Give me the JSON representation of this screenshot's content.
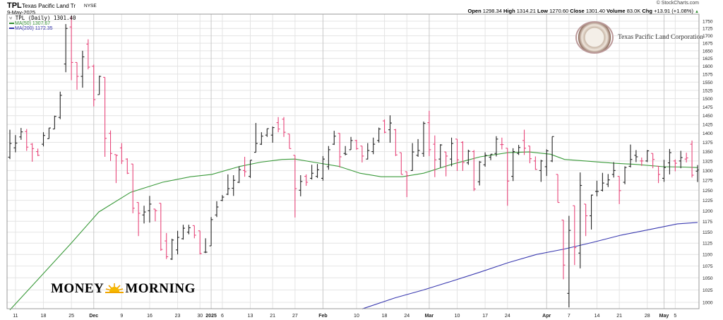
{
  "header": {
    "symbol": "TPL",
    "company": "Texas Pacific Land Tr",
    "exchange": "NYSE",
    "date": "9-May-2025",
    "copyright": "© StockCharts.com",
    "open_label": "Open",
    "open": "1298.34",
    "high_label": "High",
    "high": "1314.21",
    "low_label": "Low",
    "low": "1270.60",
    "close_label": "Close",
    "close": "1301.40",
    "volume_label": "Volume",
    "volume": "83.0K",
    "chg_label": "Chg",
    "chg": "+13.91 (+1.08%)",
    "chg_arrow": "▲"
  },
  "legend": {
    "price": "TPL (Daily) 1301.40",
    "ma50": "MA(50) 1307.67",
    "ma200": "MA(200) 1172.35"
  },
  "logos": {
    "company_logo_text": "Texas Pacific Land Corporation",
    "money_left": "MONEY",
    "money_right": "MORNING"
  },
  "colors": {
    "up": "#222222",
    "down": "#e8467a",
    "ma50": "#3a9a3a",
    "ma200": "#3a3ab0",
    "grid": "#e4e4e4"
  },
  "chart_data": {
    "type": "ohlc",
    "yscale": "log",
    "ylim": [
      987,
      1775
    ],
    "grid": true,
    "yticks": [
      1000,
      1025,
      1050,
      1075,
      1100,
      1125,
      1150,
      1175,
      1200,
      1225,
      1250,
      1275,
      1300,
      1325,
      1350,
      1375,
      1400,
      1425,
      1450,
      1475,
      1500,
      1525,
      1550,
      1575,
      1600,
      1625,
      1650,
      1675,
      1700,
      1725,
      1750
    ],
    "xticks": [
      {
        "label": "11",
        "bar": 1
      },
      {
        "label": "18",
        "bar": 6
      },
      {
        "label": "25",
        "bar": 11
      },
      {
        "label": "Dec",
        "bar": 15,
        "major": true
      },
      {
        "label": "9",
        "bar": 20
      },
      {
        "label": "16",
        "bar": 25
      },
      {
        "label": "23",
        "bar": 30
      },
      {
        "label": "30",
        "bar": 34
      },
      {
        "label": "2025",
        "bar": 36,
        "major": true
      },
      {
        "label": "6",
        "bar": 38
      },
      {
        "label": "13",
        "bar": 43
      },
      {
        "label": "21",
        "bar": 47
      },
      {
        "label": "27",
        "bar": 51
      },
      {
        "label": "Feb",
        "bar": 56,
        "major": true
      },
      {
        "label": "10",
        "bar": 62
      },
      {
        "label": "18",
        "bar": 67
      },
      {
        "label": "24",
        "bar": 71
      },
      {
        "label": "Mar",
        "bar": 75,
        "major": true
      },
      {
        "label": "10",
        "bar": 80
      },
      {
        "label": "17",
        "bar": 85
      },
      {
        "label": "24",
        "bar": 89
      },
      {
        "label": "Apr",
        "bar": 96,
        "major": true
      },
      {
        "label": "7",
        "bar": 100
      },
      {
        "label": "14",
        "bar": 105
      },
      {
        "label": "21",
        "bar": 109
      },
      {
        "label": "28",
        "bar": 114
      },
      {
        "label": "May",
        "bar": 117,
        "major": true
      },
      {
        "label": "5",
        "bar": 119
      }
    ],
    "ohlc_fields": [
      "open",
      "high",
      "low",
      "close"
    ],
    "bars": [
      [
        1335,
        1410,
        1330,
        1372
      ],
      [
        1360,
        1395,
        1348,
        1373
      ],
      [
        1390,
        1415,
        1382,
        1404
      ],
      [
        1405,
        1412,
        1352,
        1362
      ],
      [
        1370,
        1373,
        1323,
        1358
      ],
      [
        1350,
        1358,
        1338,
        1340
      ],
      [
        1370,
        1403,
        1364,
        1394
      ],
      [
        1385,
        1415,
        1385,
        1415
      ],
      [
        1412,
        1450,
        1412,
        1448
      ],
      [
        1445,
        1521,
        1440,
        1510
      ],
      [
        1607,
        1740,
        1581,
        1725
      ],
      [
        1730,
        1767,
        1556,
        1612
      ],
      [
        1612,
        1612,
        1527,
        1568
      ],
      [
        1568,
        1650,
        1533,
        1630
      ],
      [
        1672,
        1688,
        1590,
        1597
      ],
      [
        1600,
        1605,
        1477,
        1497
      ],
      [
        1512,
        1570,
        1512,
        1568
      ],
      [
        1565,
        1565,
        1336,
        1386
      ],
      [
        1400,
        1408,
        1325,
        1345
      ],
      [
        1342,
        1342,
        1268,
        1340
      ],
      [
        1360,
        1373,
        1317,
        1325
      ],
      [
        1330,
        1332,
        1291,
        1293
      ],
      [
        1317,
        1317,
        1194,
        1206
      ],
      [
        1220,
        1220,
        1141,
        1194
      ],
      [
        1190,
        1212,
        1170,
        1197
      ],
      [
        1200,
        1236,
        1172,
        1216
      ],
      [
        1204,
        1204,
        1175,
        1200
      ],
      [
        1218,
        1218,
        1108,
        1111
      ],
      [
        1130,
        1148,
        1090,
        1095
      ],
      [
        1090,
        1135,
        1088,
        1132
      ],
      [
        1110,
        1153,
        1100,
        1138
      ],
      [
        1135,
        1167,
        1133,
        1159
      ],
      [
        1150,
        1167,
        1145,
        1160
      ],
      [
        1165,
        1165,
        1136,
        1143
      ],
      [
        1153,
        1153,
        1100,
        1102
      ],
      [
        1105,
        1136,
        1103,
        1105
      ],
      [
        1119,
        1185,
        1119,
        1179
      ],
      [
        1190,
        1223,
        1185,
        1209
      ],
      [
        1225,
        1238,
        1223,
        1233
      ],
      [
        1240,
        1290,
        1238,
        1254
      ],
      [
        1255,
        1288,
        1236,
        1275
      ],
      [
        1270,
        1311,
        1268,
        1302
      ],
      [
        1300,
        1336,
        1284,
        1297
      ],
      [
        1285,
        1327,
        1281,
        1327
      ],
      [
        1348,
        1429,
        1348,
        1372
      ],
      [
        1370,
        1403,
        1368,
        1392
      ],
      [
        1395,
        1413,
        1390,
        1413
      ],
      [
        1395,
        1419,
        1374,
        1416
      ],
      [
        1430,
        1446,
        1403,
        1412
      ],
      [
        1440,
        1446,
        1390,
        1403
      ],
      [
        1398,
        1398,
        1358,
        1358
      ],
      [
        1340,
        1340,
        1184,
        1254
      ],
      [
        1250,
        1288,
        1235,
        1272
      ],
      [
        1285,
        1290,
        1261,
        1270
      ],
      [
        1280,
        1315,
        1277,
        1293
      ],
      [
        1285,
        1317,
        1281,
        1302
      ],
      [
        1280,
        1338,
        1274,
        1330
      ],
      [
        1310,
        1365,
        1302,
        1355
      ],
      [
        1370,
        1407,
        1368,
        1392
      ],
      [
        1400,
        1400,
        1308,
        1336
      ],
      [
        1345,
        1365,
        1340,
        1343
      ],
      [
        1355,
        1390,
        1355,
        1380
      ],
      [
        1380,
        1382,
        1355,
        1358
      ],
      [
        1365,
        1365,
        1321,
        1338
      ],
      [
        1330,
        1373,
        1329,
        1353
      ],
      [
        1350,
        1388,
        1343,
        1370
      ],
      [
        1380,
        1416,
        1374,
        1412
      ],
      [
        1435,
        1439,
        1400,
        1403
      ],
      [
        1410,
        1451,
        1374,
        1429
      ],
      [
        1410,
        1412,
        1338,
        1341
      ],
      [
        1347,
        1347,
        1290,
        1290
      ],
      [
        1297,
        1297,
        1233,
        1287
      ],
      [
        1300,
        1373,
        1299,
        1349
      ],
      [
        1340,
        1384,
        1336,
        1353
      ],
      [
        1345,
        1433,
        1336,
        1428
      ],
      [
        1430,
        1464,
        1338,
        1355
      ],
      [
        1370,
        1394,
        1283,
        1328
      ],
      [
        1330,
        1370,
        1308,
        1368
      ],
      [
        1349,
        1349,
        1285,
        1338
      ],
      [
        1330,
        1388,
        1311,
        1372
      ],
      [
        1384,
        1384,
        1299,
        1328
      ],
      [
        1375,
        1378,
        1299,
        1321
      ],
      [
        1320,
        1355,
        1315,
        1351
      ],
      [
        1350,
        1354,
        1248,
        1253
      ],
      [
        1271,
        1325,
        1262,
        1322
      ],
      [
        1315,
        1348,
        1310,
        1340
      ],
      [
        1335,
        1343,
        1327,
        1343
      ],
      [
        1345,
        1392,
        1337,
        1384
      ],
      [
        1369,
        1388,
        1356,
        1369
      ],
      [
        1359,
        1359,
        1212,
        1273
      ],
      [
        1285,
        1359,
        1273,
        1350
      ],
      [
        1345,
        1368,
        1341,
        1361
      ],
      [
        1380,
        1410,
        1341,
        1359
      ],
      [
        1365,
        1365,
        1319,
        1331
      ],
      [
        1325,
        1337,
        1302,
        1303
      ],
      [
        1300,
        1328,
        1271,
        1325
      ],
      [
        1310,
        1356,
        1286,
        1352
      ],
      [
        1325,
        1391,
        1322,
        1391
      ],
      [
        1290,
        1290,
        1220,
        1220
      ],
      [
        1178,
        1178,
        1047,
        1077
      ],
      [
        1018,
        1188,
        990,
        1154
      ],
      [
        1212,
        1212,
        1077,
        1115
      ],
      [
        1103,
        1295,
        1070,
        1262
      ],
      [
        1216,
        1216,
        1141,
        1188
      ],
      [
        1188,
        1239,
        1156,
        1238
      ],
      [
        1247,
        1274,
        1235,
        1247
      ],
      [
        1250,
        1294,
        1247,
        1268
      ],
      [
        1265,
        1291,
        1258,
        1276
      ],
      [
        1290,
        1322,
        1282,
        1300
      ],
      [
        1285,
        1285,
        1216,
        1249
      ],
      [
        1270,
        1311,
        1265,
        1308
      ],
      [
        1311,
        1369,
        1308,
        1329
      ],
      [
        1340,
        1354,
        1322,
        1336
      ],
      [
        1325,
        1334,
        1312,
        1325
      ],
      [
        1325,
        1354,
        1322,
        1352
      ],
      [
        1345,
        1345,
        1306,
        1329
      ],
      [
        1311,
        1311,
        1268,
        1290
      ],
      [
        1280,
        1328,
        1271,
        1308
      ],
      [
        1320,
        1357,
        1290,
        1347
      ],
      [
        1325,
        1329,
        1298,
        1319
      ],
      [
        1325,
        1352,
        1306,
        1334
      ],
      [
        1330,
        1347,
        1321,
        1333
      ],
      [
        1370,
        1380,
        1282,
        1288
      ],
      [
        1298.34,
        1314.21,
        1270.6,
        1301.4
      ]
    ],
    "series": [
      {
        "name": "MA(50)",
        "points": [
          [
            0,
            985
          ],
          [
            4.5,
            1040
          ],
          [
            10.9,
            1124
          ],
          [
            15.9,
            1197
          ],
          [
            21.6,
            1245
          ],
          [
            27.3,
            1270
          ],
          [
            32.3,
            1284
          ],
          [
            36.1,
            1290
          ],
          [
            41.2,
            1311
          ],
          [
            44.9,
            1322
          ],
          [
            48.7,
            1329
          ],
          [
            51,
            1330
          ],
          [
            55,
            1320
          ],
          [
            58.8,
            1311
          ],
          [
            62.6,
            1293
          ],
          [
            66.4,
            1284
          ],
          [
            70.2,
            1284
          ],
          [
            74,
            1293
          ],
          [
            79,
            1316
          ],
          [
            84.1,
            1336
          ],
          [
            89.1,
            1347
          ],
          [
            92.9,
            1349
          ],
          [
            96.7,
            1343
          ],
          [
            99.2,
            1329
          ],
          [
            103,
            1325
          ],
          [
            108.1,
            1319
          ],
          [
            111.9,
            1316
          ],
          [
            116.9,
            1310
          ],
          [
            120.7,
            1309
          ],
          [
            123,
            1307.67
          ]
        ]
      },
      {
        "name": "MA(200)",
        "points": [
          [
            63,
            987
          ],
          [
            68.9,
            1009
          ],
          [
            74,
            1025
          ],
          [
            79,
            1043
          ],
          [
            84.1,
            1062
          ],
          [
            89.1,
            1082
          ],
          [
            94.2,
            1100
          ],
          [
            99.2,
            1112
          ],
          [
            104.3,
            1127
          ],
          [
            109.3,
            1143
          ],
          [
            114.4,
            1156
          ],
          [
            119.4,
            1169
          ],
          [
            123,
            1172.35
          ]
        ]
      }
    ]
  }
}
